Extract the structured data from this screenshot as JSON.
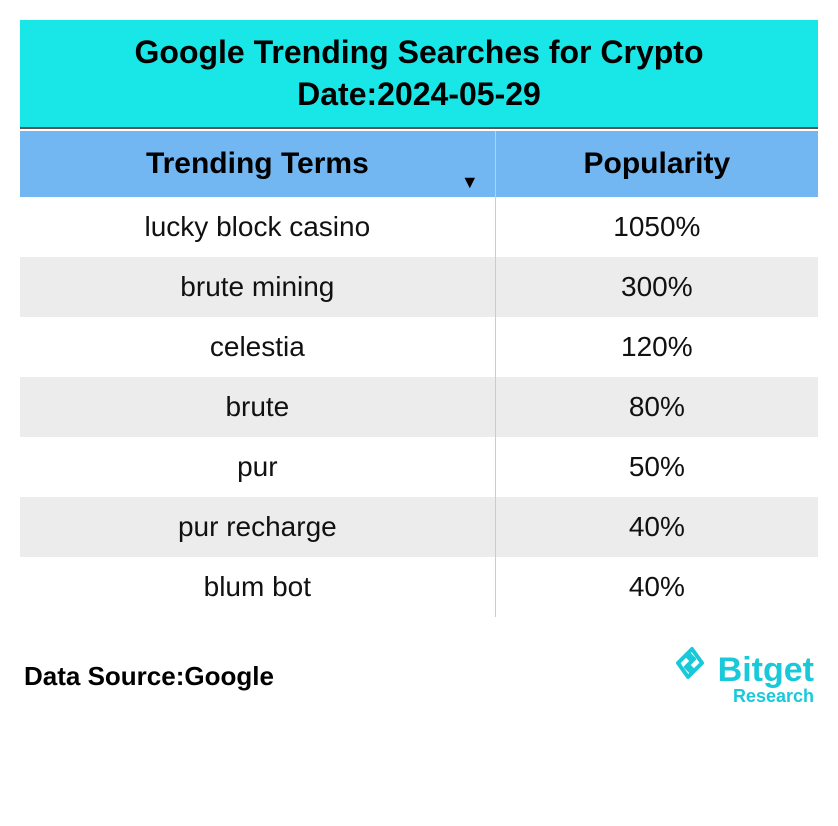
{
  "header": {
    "title_line1": "Google Trending Searches for Crypto",
    "title_line2": "Date:2024-05-29",
    "banner_color": "#19e6e6",
    "title_fontsize": 32,
    "title_color": "#000000"
  },
  "table": {
    "type": "table",
    "columns": [
      "Trending Terms",
      "Popularity"
    ],
    "header_bg": "#72b6f2",
    "header_fontsize": 30,
    "header_font_weight": 700,
    "cell_fontsize": 28,
    "row_alt_bg": "#ececec",
    "row_bg": "#ffffff",
    "col_separator_color": "#cccccc",
    "sort_indicator": "▼",
    "rows": [
      {
        "term": "lucky block casino",
        "popularity": "1050%"
      },
      {
        "term": "brute mining",
        "popularity": "300%"
      },
      {
        "term": "celestia",
        "popularity": "120%"
      },
      {
        "term": "brute",
        "popularity": "80%"
      },
      {
        "term": "pur",
        "popularity": "50%"
      },
      {
        "term": "pur recharge",
        "popularity": "40%"
      },
      {
        "term": "blum bot",
        "popularity": "40%"
      }
    ]
  },
  "footer": {
    "data_source_label": "Data Source:Google",
    "data_source_fontsize": 26,
    "logo": {
      "glyph": "⟐",
      "main": "Bitget",
      "sub": "Research",
      "color": "#1ac9d9"
    }
  },
  "background_color": "#ffffff"
}
